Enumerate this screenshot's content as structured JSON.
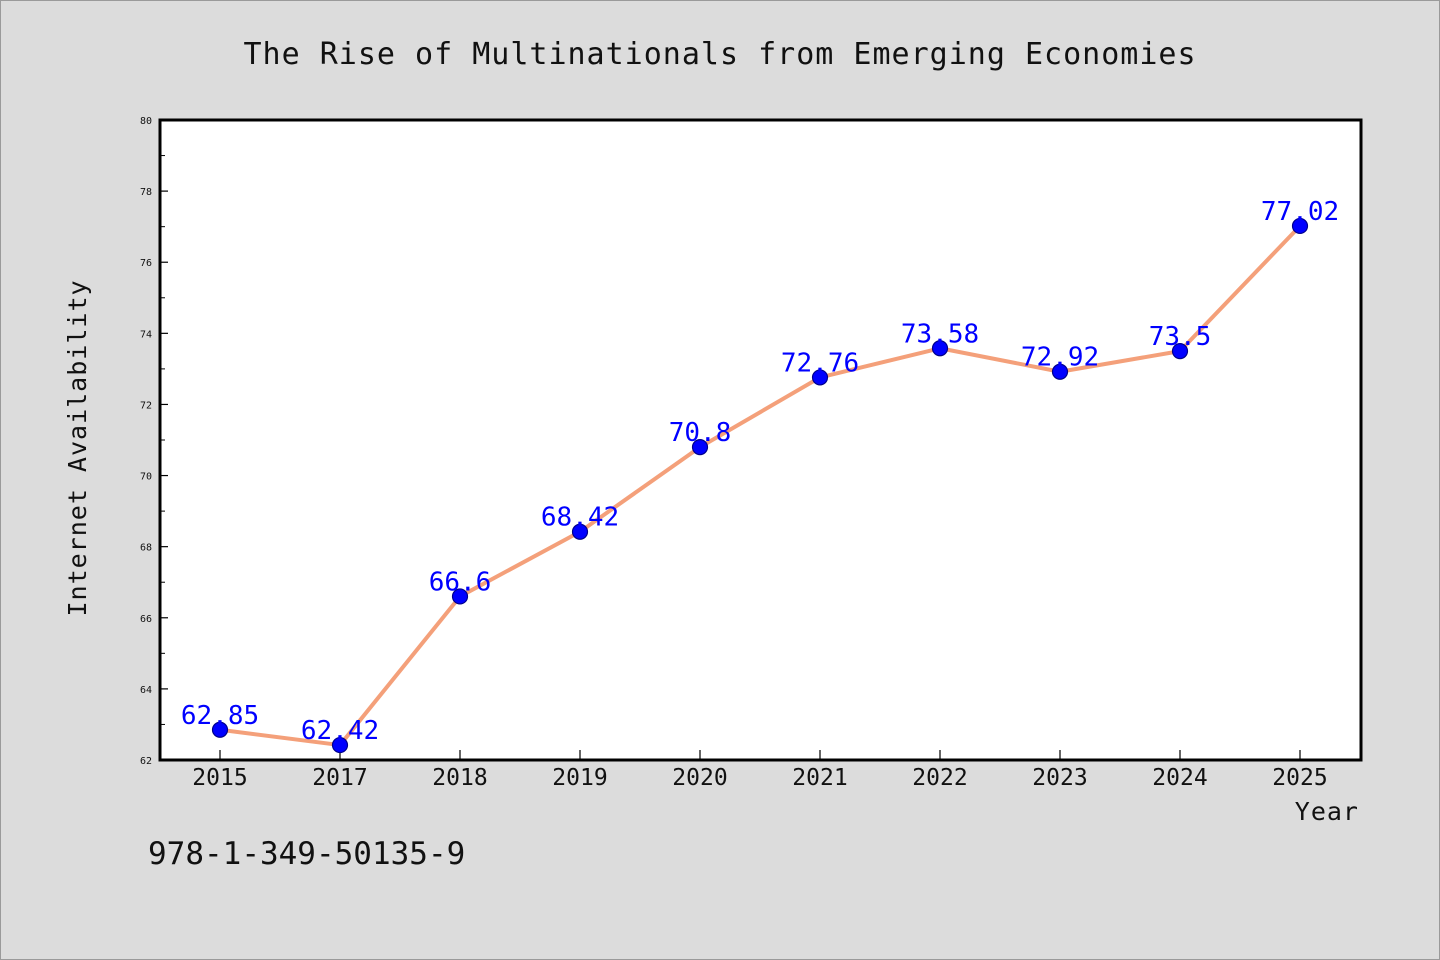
{
  "chart_data": {
    "type": "line",
    "title": "The Rise of Multinationals from Emerging Economies",
    "xlabel": "Year",
    "ylabel": "Internet Availability",
    "categories": [
      "2015",
      "2017",
      "2018",
      "2019",
      "2020",
      "2021",
      "2022",
      "2023",
      "2024",
      "2025"
    ],
    "series": [
      {
        "values": [
          62.85,
          62.42,
          66.6,
          68.42,
          70.8,
          72.76,
          73.58,
          72.92,
          73.5,
          77.02
        ],
        "data_labels": [
          "62.85",
          "62.42",
          "66.6",
          "68.42",
          "70.8",
          "72.76",
          "73.58",
          "72.92",
          "73.5",
          "77.02"
        ]
      }
    ],
    "ylim": [
      62,
      80
    ],
    "yticks": [
      62,
      64,
      66,
      68,
      70,
      72,
      74,
      76,
      78,
      80
    ],
    "grid": false,
    "legend": "none",
    "colors": {
      "line": "#f4a07a",
      "marker": "#0000ff",
      "data_label": "#0000ff",
      "plot_background": "#ffffff",
      "page_background": "#dcdcdc"
    }
  },
  "footer": {
    "isbn": "978-1-349-50135-9"
  }
}
